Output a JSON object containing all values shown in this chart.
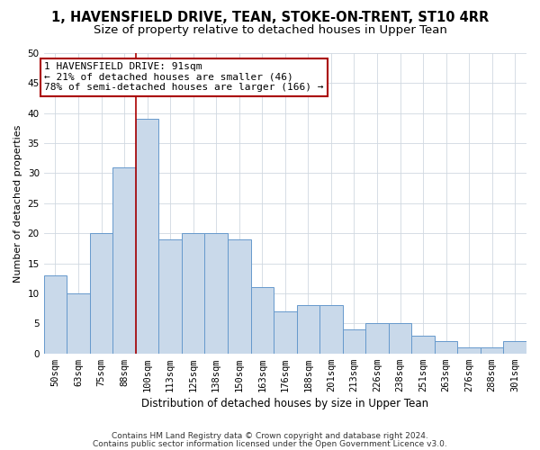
{
  "title1": "1, HAVENSFIELD DRIVE, TEAN, STOKE-ON-TRENT, ST10 4RR",
  "title2": "Size of property relative to detached houses in Upper Tean",
  "xlabel": "Distribution of detached houses by size in Upper Tean",
  "ylabel": "Number of detached properties",
  "footer1": "Contains HM Land Registry data © Crown copyright and database right 2024.",
  "footer2": "Contains public sector information licensed under the Open Government Licence v3.0.",
  "bar_labels": [
    "50sqm",
    "63sqm",
    "75sqm",
    "88sqm",
    "100sqm",
    "113sqm",
    "125sqm",
    "138sqm",
    "150sqm",
    "163sqm",
    "176sqm",
    "188sqm",
    "201sqm",
    "213sqm",
    "226sqm",
    "238sqm",
    "251sqm",
    "263sqm",
    "276sqm",
    "288sqm",
    "301sqm"
  ],
  "bar_values": [
    13,
    10,
    20,
    31,
    39,
    19,
    20,
    20,
    19,
    11,
    7,
    8,
    8,
    4,
    5,
    5,
    3,
    2,
    1,
    1,
    2
  ],
  "bar_color": "#c9d9ea",
  "bar_edge_color": "#6699cc",
  "grid_color": "#d0d8e0",
  "annotation_line1": "1 HAVENSFIELD DRIVE: 91sqm",
  "annotation_line2": "← 21% of detached houses are smaller (46)",
  "annotation_line3": "78% of semi-detached houses are larger (166) →",
  "annotation_box_color": "#ffffff",
  "annotation_box_edge": "#aa0000",
  "property_line_x": 3.5,
  "property_line_color": "#aa0000",
  "ylim": [
    0,
    50
  ],
  "yticks": [
    0,
    5,
    10,
    15,
    20,
    25,
    30,
    35,
    40,
    45,
    50
  ],
  "bg_color": "#ffffff",
  "plot_bg_color": "#ffffff",
  "title1_fontsize": 10.5,
  "title2_fontsize": 9.5,
  "xlabel_fontsize": 8.5,
  "ylabel_fontsize": 8,
  "tick_fontsize": 7.5,
  "annot_fontsize": 8,
  "footer_fontsize": 6.5
}
